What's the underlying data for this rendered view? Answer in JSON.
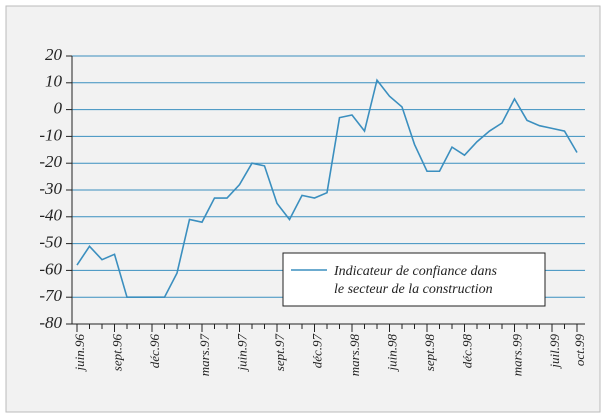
{
  "chart_data": {
    "type": "line",
    "categories": [
      "juin.96",
      null,
      null,
      "sept.96",
      null,
      null,
      "déc.96",
      null,
      null,
      null,
      "mars.97",
      null,
      null,
      "juin.97",
      null,
      null,
      "sept.97",
      null,
      null,
      "déc.97",
      null,
      null,
      "mars.98",
      null,
      null,
      "juin.98",
      null,
      null,
      "sept.98",
      null,
      null,
      "déc.98",
      null,
      null,
      null,
      "mars.99",
      null,
      null,
      "juil.99",
      null,
      "oct.99"
    ],
    "series": [
      {
        "name": "Indicateur de confiance dans le secteur de la construction",
        "color": "#3b8fbf",
        "values": [
          -58,
          -51,
          -56,
          -54,
          -70,
          -70,
          -70,
          -70,
          -61,
          -41,
          -42,
          -33,
          -33,
          -28,
          -20,
          -21,
          -35,
          -41,
          -32,
          -33,
          -31,
          -3,
          -2,
          -8,
          11,
          5,
          1,
          -13,
          -23,
          -23,
          -14,
          -17,
          -12,
          -8,
          -5,
          4,
          -4,
          -6,
          -7,
          -8,
          -16
        ]
      }
    ],
    "ylim": [
      -80,
      20
    ],
    "yticks": [
      -80,
      -70,
      -60,
      -50,
      -40,
      -30,
      -20,
      -10,
      0,
      10,
      20
    ],
    "grid": true,
    "legend": "lower right"
  }
}
